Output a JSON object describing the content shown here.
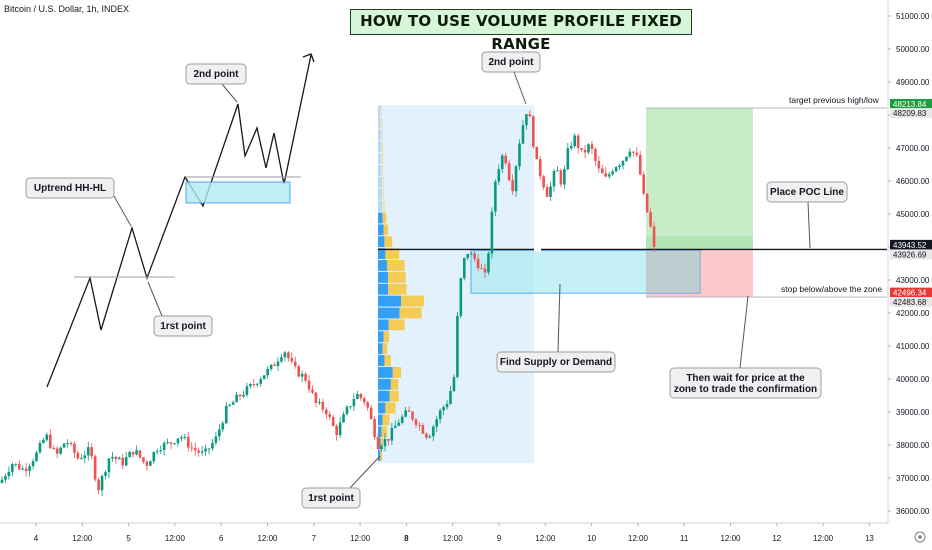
{
  "symbol": "Bitcoin / U.S. Dollar, 1h, INDEX",
  "title": "HOW TO USE VOLUME PROFILE FIXED RANGE",
  "colors": {
    "up": "#26a69a",
    "down": "#ef5350",
    "up_alt": "#089981",
    "profile_up": "#2196f3",
    "profile_down": "#f5c842",
    "profile_region": "#e3f1fc",
    "zone_fill": "#b2ebf2",
    "zone_border": "#2196f3",
    "target_fill": "#c8ecc8",
    "stop_fill": "#fcc8cc",
    "label_bg": "#f0f0f0",
    "label_border": "#9e9e9e",
    "axis_green": "#1b9e3e",
    "axis_red": "#e53935"
  },
  "annotations": {
    "second_point_left": "2nd point",
    "uptrend": "Uptrend HH-HL",
    "first_point_left": "1rst point",
    "second_point_top": "2nd point",
    "first_point_bottom": "1rst point",
    "place_poc": "Place POC Line",
    "find_zone": "Find Supply or Demand",
    "wait_line1": "Then wait for price at the",
    "wait_line2": "zone to trade the confirmation",
    "target_text": "target previous high/low",
    "stop_text": "stop below/above the zone"
  },
  "chart_data": {
    "type": "candlestick",
    "title": "HOW TO USE VOLUME PROFILE FIXED RANGE",
    "symbol": "Bitcoin / U.S. Dollar, 1h, INDEX",
    "y_axis": {
      "ticks": [
        51000,
        50000,
        49000,
        48000,
        47000,
        46000,
        45000,
        44000,
        43000,
        42000,
        41000,
        40000,
        39000,
        38000,
        37000,
        36000
      ],
      "tick_labels": [
        "51000.00",
        "50000.00",
        "49000.00",
        "48000.00",
        "47000.00",
        "46000.00",
        "45000.00",
        "44000.00",
        "43000.00",
        "42000.00",
        "41000.00",
        "40000.00",
        "39000.00",
        "38000.00",
        "37000.00",
        "36000.00"
      ],
      "range": [
        35400,
        51400
      ],
      "price_tags": [
        {
          "value": 48213.84,
          "label": "48213.84",
          "color": "green"
        },
        {
          "value": 48209.83,
          "label": "48209.83",
          "color": "gray"
        },
        {
          "value": 43943.52,
          "label": "43943.52",
          "color": "dark"
        },
        {
          "value": 43926.69,
          "label": "43926.69",
          "color": "gray"
        },
        {
          "value": 42496.34,
          "label": "42496.34",
          "color": "red"
        },
        {
          "value": 42483.68,
          "label": "42483.68",
          "color": "gray"
        }
      ]
    },
    "x_axis": {
      "tick_labels": [
        "4",
        "12:00",
        "5",
        "12:00",
        "6",
        "12:00",
        "7",
        "12:00",
        "8",
        "12:00",
        "9",
        "12:00",
        "10",
        "12:00",
        "11",
        "12:00",
        "12",
        "12:00",
        "13"
      ],
      "bold": [
        "8"
      ]
    },
    "price_path": [
      [
        0,
        36850
      ],
      [
        12,
        37450
      ],
      [
        24,
        37250
      ],
      [
        36,
        37700
      ],
      [
        46,
        38300
      ],
      [
        56,
        37650
      ],
      [
        66,
        38150
      ],
      [
        78,
        37600
      ],
      [
        90,
        37850
      ],
      [
        98,
        36650
      ],
      [
        110,
        37700
      ],
      [
        122,
        37450
      ],
      [
        134,
        37850
      ],
      [
        146,
        37400
      ],
      [
        158,
        37950
      ],
      [
        170,
        38050
      ],
      [
        180,
        38300
      ],
      [
        192,
        37900
      ],
      [
        204,
        37700
      ],
      [
        216,
        38200
      ],
      [
        226,
        39050
      ],
      [
        238,
        39450
      ],
      [
        250,
        39750
      ],
      [
        262,
        40100
      ],
      [
        272,
        40350
      ],
      [
        284,
        40900
      ],
      [
        294,
        40300
      ],
      [
        306,
        40000
      ],
      [
        316,
        39250
      ],
      [
        326,
        39050
      ],
      [
        336,
        38350
      ],
      [
        346,
        39000
      ],
      [
        356,
        39550
      ],
      [
        366,
        39300
      ],
      [
        378,
        38000
      ],
      [
        388,
        38200
      ],
      [
        398,
        38700
      ],
      [
        408,
        39000
      ],
      [
        418,
        38650
      ],
      [
        428,
        38250
      ],
      [
        440,
        39000
      ],
      [
        448,
        39350
      ],
      [
        456,
        40300
      ],
      [
        458,
        42500
      ],
      [
        466,
        43900
      ],
      [
        476,
        43600
      ],
      [
        486,
        43050
      ],
      [
        490,
        44400
      ],
      [
        496,
        46200
      ],
      [
        504,
        46900
      ],
      [
        512,
        45700
      ],
      [
        520,
        47300
      ],
      [
        526,
        48150
      ],
      [
        530,
        47850
      ],
      [
        536,
        46600
      ],
      [
        542,
        46050
      ],
      [
        548,
        45550
      ],
      [
        556,
        46400
      ],
      [
        562,
        45900
      ],
      [
        568,
        46900
      ],
      [
        574,
        47350
      ],
      [
        582,
        46800
      ],
      [
        590,
        47100
      ],
      [
        598,
        46350
      ],
      [
        606,
        46050
      ],
      [
        614,
        46450
      ],
      [
        622,
        46600
      ],
      [
        630,
        47000
      ],
      [
        638,
        46650
      ],
      [
        644,
        45450
      ],
      [
        650,
        44700
      ],
      [
        655,
        43750
      ]
    ],
    "volume_profile": {
      "price_range": [
        37500,
        48300
      ],
      "rows": [
        {
          "up": 0.05,
          "down": 0.03
        },
        {
          "up": 0.05,
          "down": 0.05
        },
        {
          "up": 0.06,
          "down": 0.04
        },
        {
          "up": 0.07,
          "down": 0.05
        },
        {
          "up": 0.06,
          "down": 0.06
        },
        {
          "up": 0.07,
          "down": 0.04
        },
        {
          "up": 0.08,
          "down": 0.05
        },
        {
          "up": 0.08,
          "down": 0.06
        },
        {
          "up": 0.09,
          "down": 0.07
        },
        {
          "up": 0.1,
          "down": 0.08
        },
        {
          "up": 0.12,
          "down": 0.1
        },
        {
          "up": 0.14,
          "down": 0.17
        },
        {
          "up": 0.16,
          "down": 0.3
        },
        {
          "up": 0.2,
          "down": 0.38
        },
        {
          "up": 0.22,
          "down": 0.38
        },
        {
          "up": 0.22,
          "down": 0.4
        },
        {
          "up": 0.5,
          "down": 0.5
        },
        {
          "up": 0.47,
          "down": 0.48
        },
        {
          "up": 0.23,
          "down": 0.35
        },
        {
          "up": 0.12,
          "down": 0.12
        },
        {
          "up": 0.1,
          "down": 0.1
        },
        {
          "up": 0.14,
          "down": 0.14
        },
        {
          "up": 0.32,
          "down": 0.18
        },
        {
          "up": 0.28,
          "down": 0.16
        },
        {
          "up": 0.25,
          "down": 0.2
        },
        {
          "up": 0.16,
          "down": 0.22
        },
        {
          "up": 0.1,
          "down": 0.15
        },
        {
          "up": 0.08,
          "down": 0.12
        },
        {
          "up": 0.06,
          "down": 0.05
        },
        {
          "up": 0.05,
          "down": 0.04
        }
      ]
    },
    "poc_level": 43926.69,
    "zone": {
      "top": 43900,
      "bottom": 42600
    },
    "target_level": 48209.83,
    "stop_level": 42483.68
  }
}
